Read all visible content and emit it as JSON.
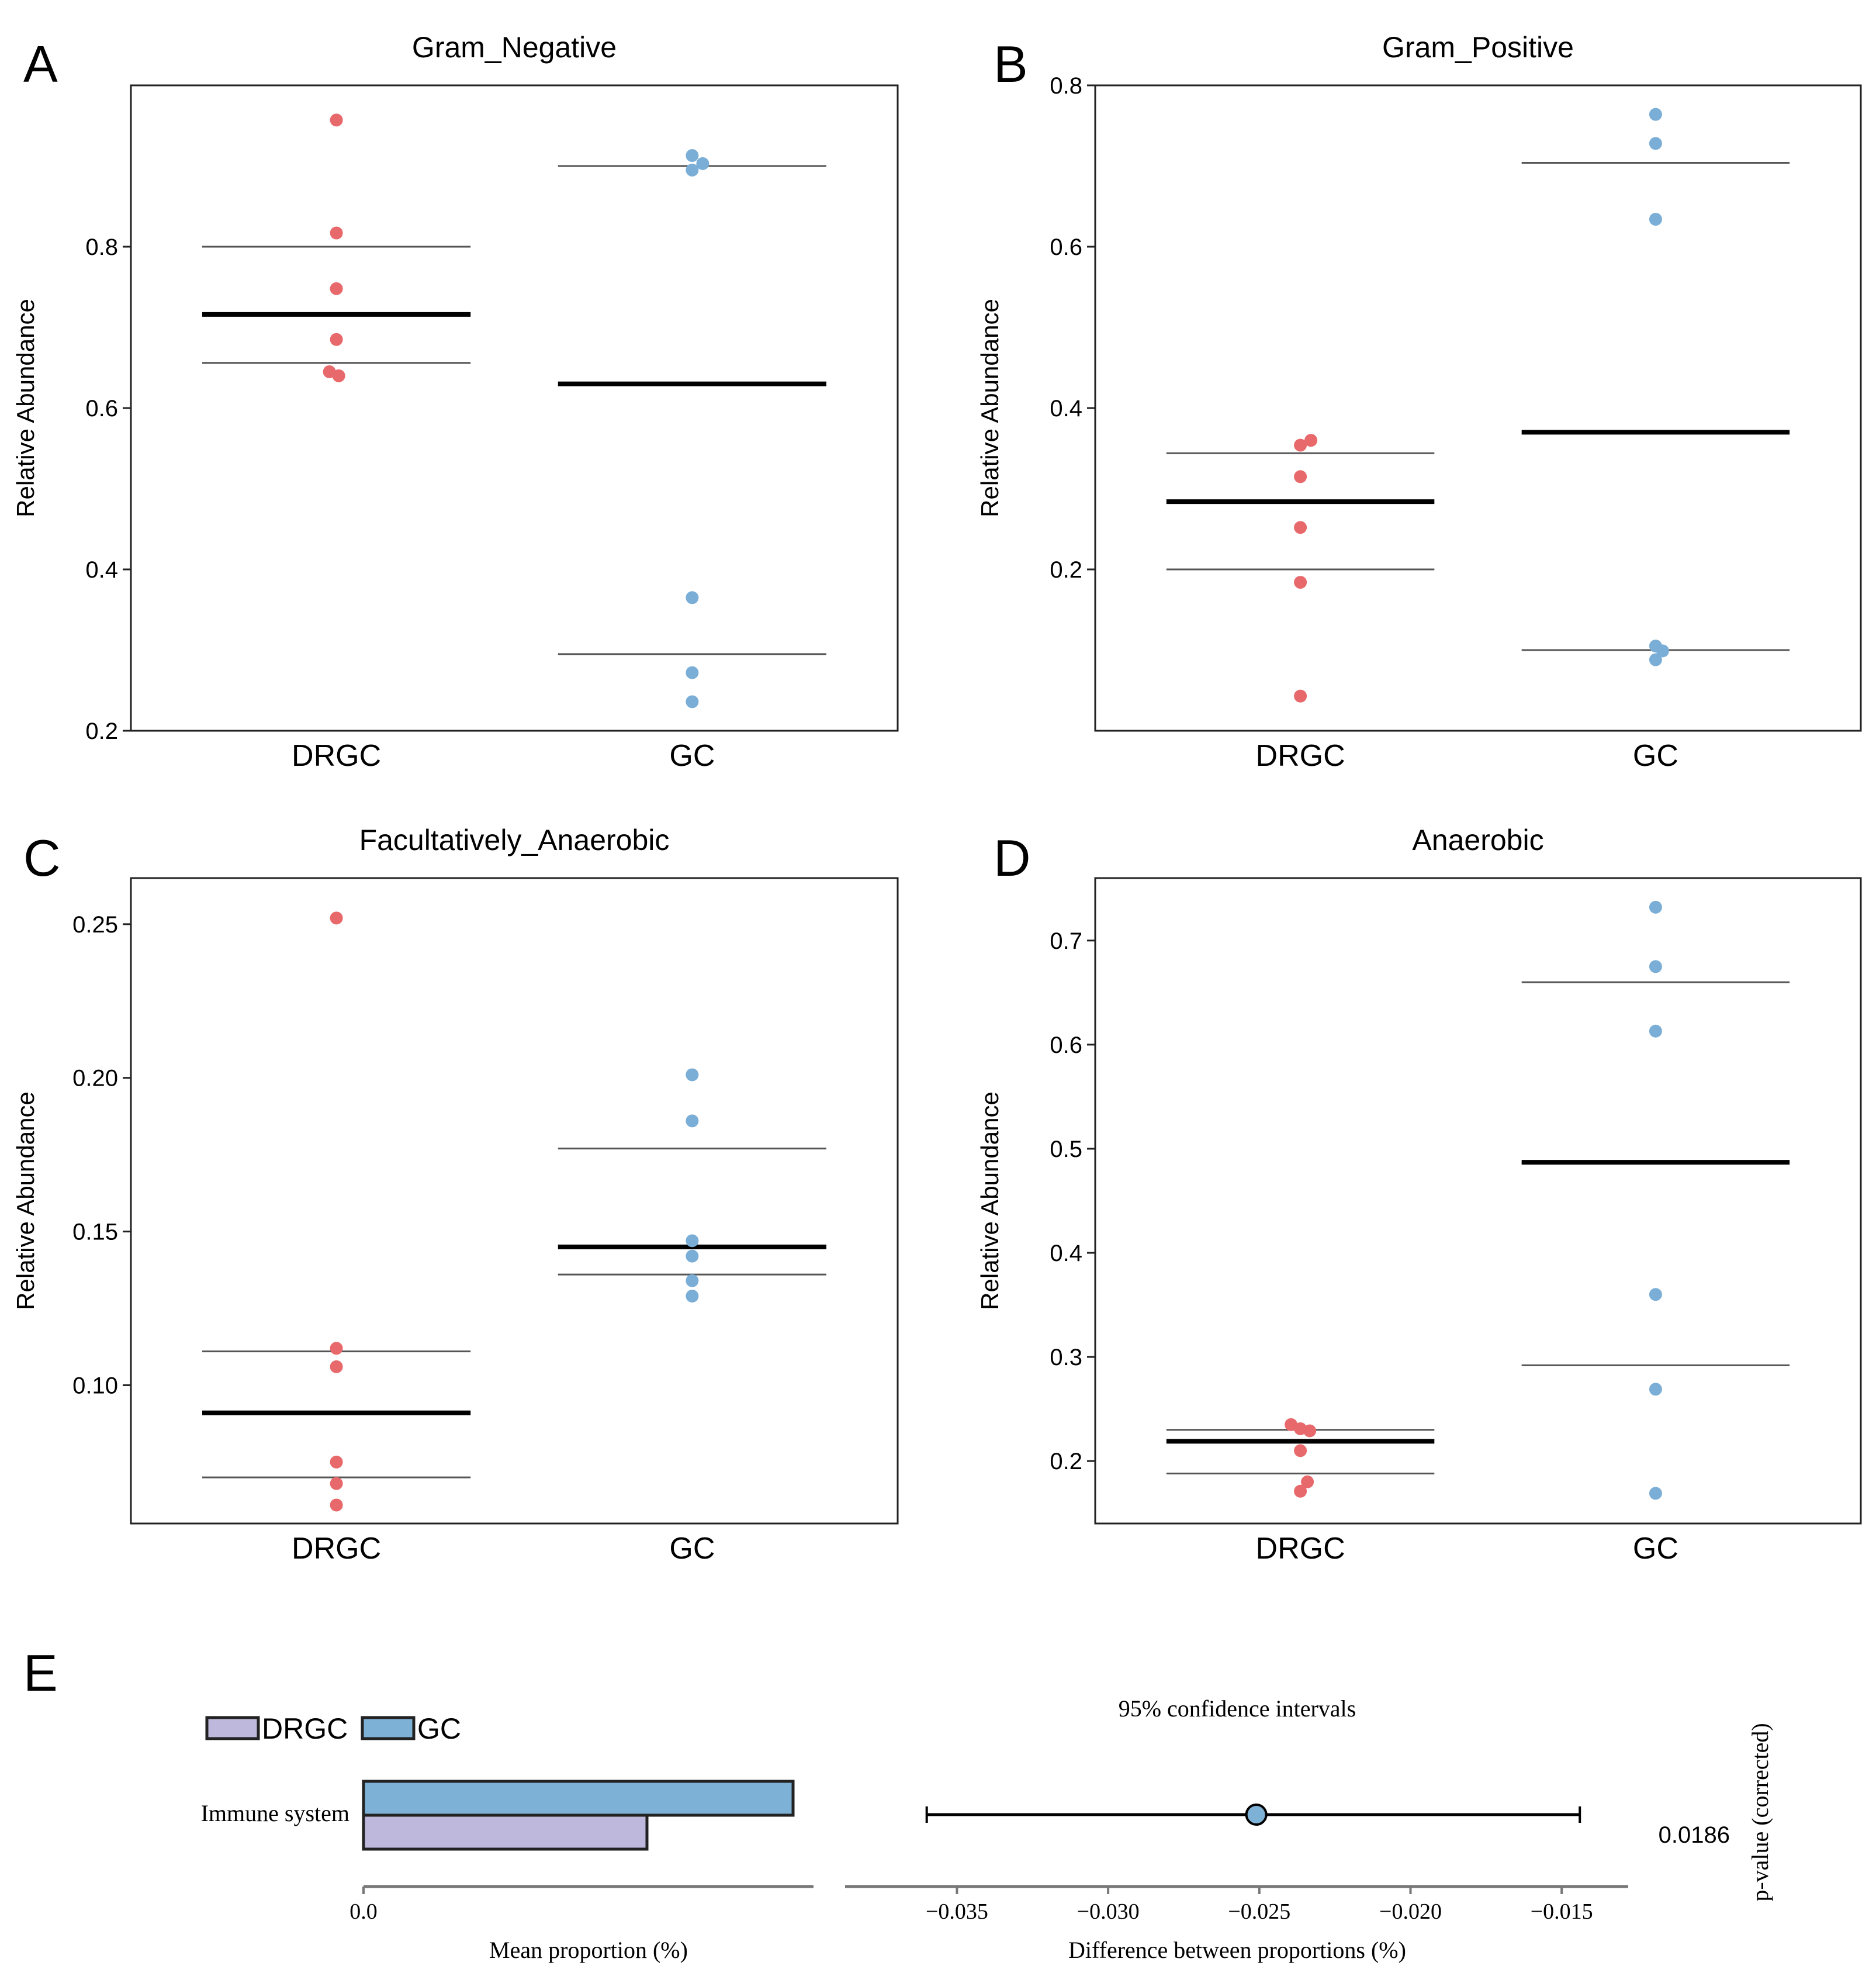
{
  "colors": {
    "drgc_point": "#e8696b",
    "gc_point": "#7aaed6",
    "drgc_bar": "#bdb8dc",
    "gc_bar": "#7eb1d6",
    "axis": "#222222",
    "mean_line": "#000000",
    "sd_line": "#555555"
  },
  "chart_data": [
    {
      "panel_label": "A",
      "type": "scatter",
      "title": "Gram_Negative",
      "ylabel": "Relative Abundance",
      "ylim": [
        0.2,
        1.0
      ],
      "yticks": [
        0.2,
        0.4,
        0.6,
        0.8
      ],
      "ytick_labels": [
        "0.2",
        "0.4",
        "0.6",
        "0.8"
      ],
      "categories": [
        "DRGC",
        "GC"
      ],
      "series": [
        {
          "name": "DRGC",
          "values": [
            0.957,
            0.817,
            0.748,
            0.685,
            0.645,
            0.64
          ],
          "mean": 0.716,
          "upper": 0.8,
          "lower": 0.656
        },
        {
          "name": "GC",
          "values": [
            0.913,
            0.903,
            0.895,
            0.365,
            0.272,
            0.236
          ],
          "mean": 0.63,
          "upper": 0.9,
          "lower": 0.295
        }
      ]
    },
    {
      "panel_label": "B",
      "type": "scatter",
      "title": "Gram_Positive",
      "ylabel": "Relative Abundance",
      "ylim": [
        0.0,
        0.8
      ],
      "yticks": [
        0.2,
        0.4,
        0.6,
        0.8
      ],
      "ytick_labels": [
        "0.2",
        "0.4",
        "0.6",
        "0.8"
      ],
      "categories": [
        "DRGC",
        "GC"
      ],
      "series": [
        {
          "name": "DRGC",
          "values": [
            0.36,
            0.354,
            0.315,
            0.252,
            0.184,
            0.043
          ],
          "mean": 0.284,
          "upper": 0.344,
          "lower": 0.2
        },
        {
          "name": "GC",
          "values": [
            0.764,
            0.728,
            0.634,
            0.105,
            0.099,
            0.088
          ],
          "mean": 0.37,
          "upper": 0.704,
          "lower": 0.1
        }
      ]
    },
    {
      "panel_label": "C",
      "type": "scatter",
      "title": "Facultatively_Anaerobic",
      "ylabel": "Relative Abundance",
      "ylim": [
        0.055,
        0.265
      ],
      "yticks": [
        0.1,
        0.15,
        0.2,
        0.25
      ],
      "ytick_labels": [
        "0.10",
        "0.15",
        "0.20",
        "0.25"
      ],
      "categories": [
        "DRGC",
        "GC"
      ],
      "series": [
        {
          "name": "DRGC",
          "values": [
            0.252,
            0.112,
            0.106,
            0.075,
            0.068,
            0.061
          ],
          "mean": 0.091,
          "upper": 0.111,
          "lower": 0.07
        },
        {
          "name": "GC",
          "values": [
            0.201,
            0.186,
            0.147,
            0.142,
            0.134,
            0.129
          ],
          "mean": 0.145,
          "upper": 0.177,
          "lower": 0.136
        }
      ]
    },
    {
      "panel_label": "D",
      "type": "scatter",
      "title": "Anaerobic",
      "ylabel": "Relative Abundance",
      "ylim": [
        0.14,
        0.76
      ],
      "yticks": [
        0.2,
        0.3,
        0.4,
        0.5,
        0.6,
        0.7
      ],
      "ytick_labels": [
        "0.2",
        "0.3",
        "0.4",
        "0.5",
        "0.6",
        "0.7"
      ],
      "categories": [
        "DRGC",
        "GC"
      ],
      "series": [
        {
          "name": "DRGC",
          "values": [
            0.235,
            0.231,
            0.229,
            0.21,
            0.18,
            0.171
          ],
          "mean": 0.219,
          "upper": 0.23,
          "lower": 0.188
        },
        {
          "name": "GC",
          "values": [
            0.732,
            0.675,
            0.613,
            0.36,
            0.269,
            0.169
          ],
          "mean": 0.487,
          "upper": 0.66,
          "lower": 0.292
        }
      ]
    },
    {
      "panel_label": "E",
      "type": "bar",
      "legend": [
        "DRGC",
        "GC"
      ],
      "categories": [
        "Immune system"
      ],
      "series": [
        {
          "name": "GC",
          "values": [
            0.0735
          ]
        },
        {
          "name": "DRGC",
          "values": [
            0.0485
          ]
        }
      ],
      "xlim": [
        0.0,
        0.077
      ],
      "xticks": [
        0.0
      ],
      "xtick_labels": [
        "0.0"
      ],
      "xlabel": "Mean proportion (%)",
      "ci_title": "95% confidence intervals",
      "ci_xlabel": "Difference between proportions (%)",
      "ci_xlim": [
        -0.0387,
        -0.0128
      ],
      "ci_xticks": [
        -0.035,
        -0.03,
        -0.025,
        -0.02,
        -0.015
      ],
      "ci_xtick_labels": [
        "−0.035",
        "−0.030",
        "−0.025",
        "−0.020",
        "−0.015"
      ],
      "difference": -0.0251,
      "ci_low": -0.036,
      "ci_high": -0.0144,
      "pvalue_label": "p-value (corrected)",
      "pvalue": "0.0186"
    }
  ]
}
